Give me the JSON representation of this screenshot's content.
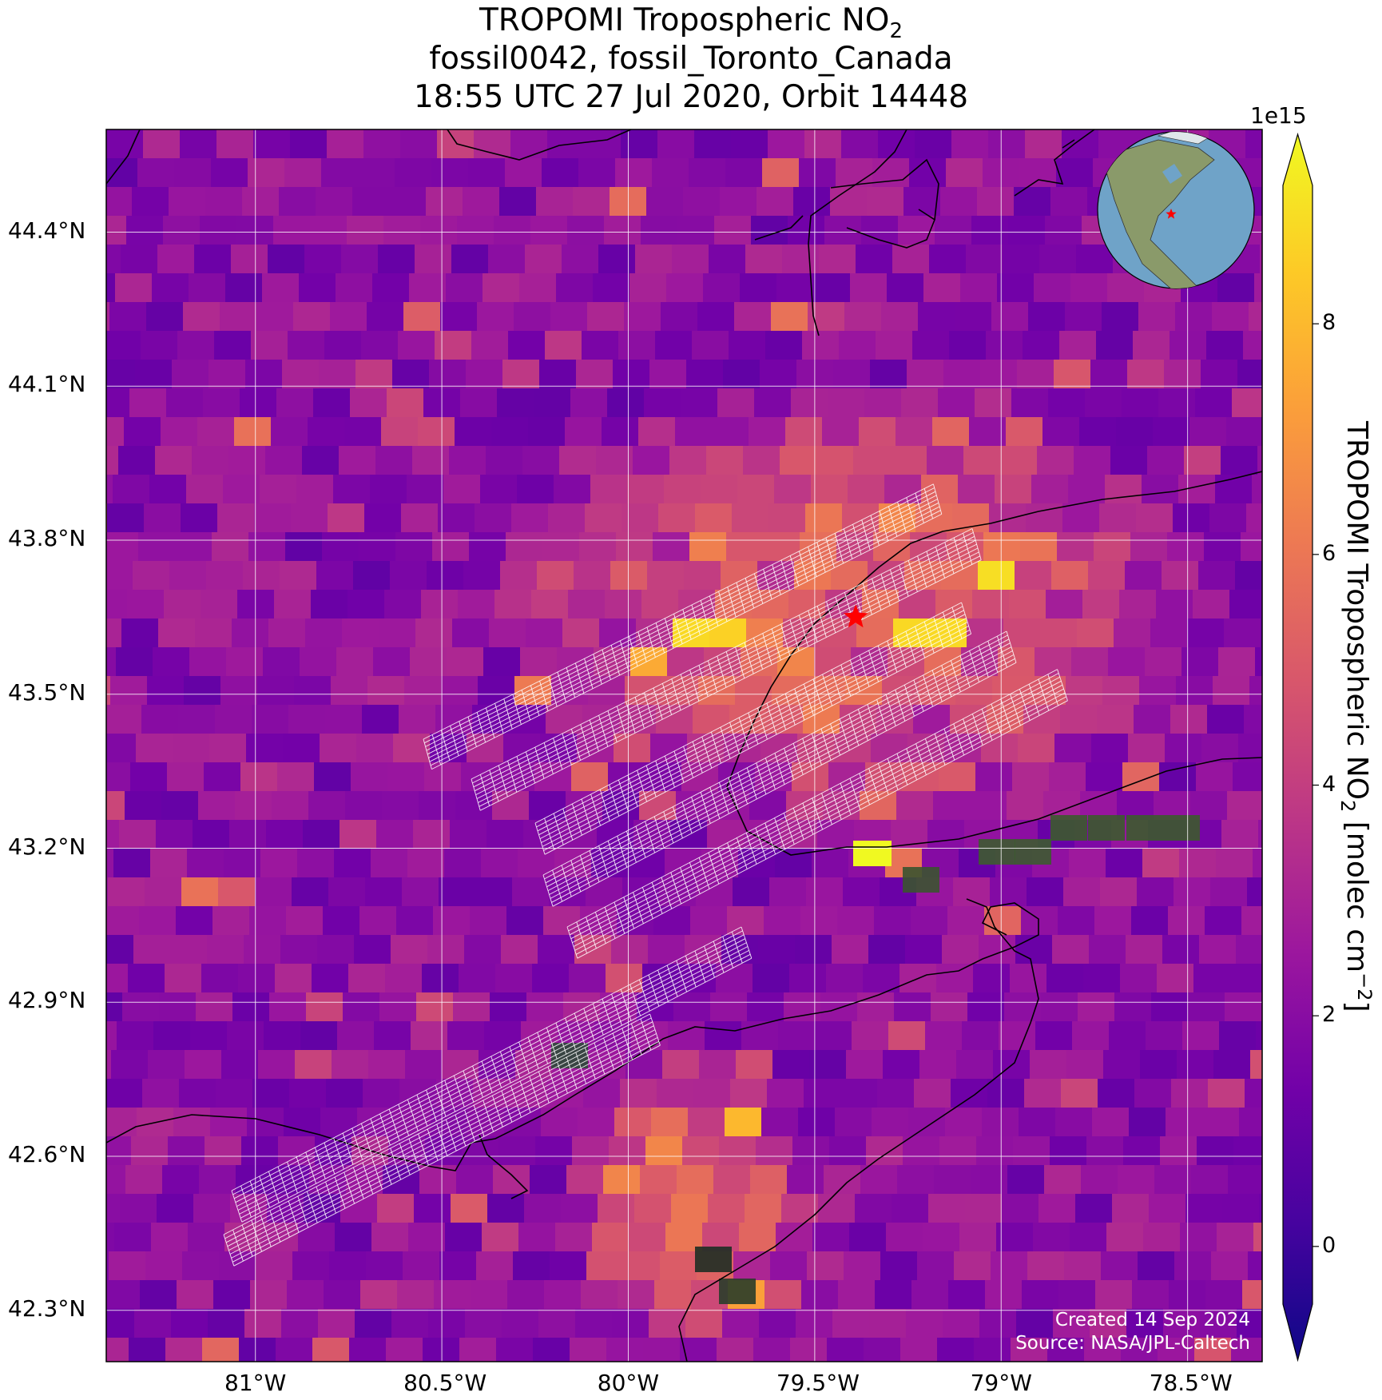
{
  "title": {
    "line1_prefix": "TROPOMI Tropospheric NO",
    "line1_sub": "2",
    "line2": "fossil0042, fossil_Toronto_Canada",
    "line3": "18:55 UTC 27 Jul 2020, Orbit 14448"
  },
  "map": {
    "lon_range": [
      -81.4,
      -78.3
    ],
    "lat_range": [
      42.2,
      44.6
    ],
    "lon_ticks": [
      {
        "value": -81.0,
        "label": "81°W"
      },
      {
        "value": -80.5,
        "label": "80.5°W"
      },
      {
        "value": -80.0,
        "label": "80°W"
      },
      {
        "value": -79.5,
        "label": "79.5°W"
      },
      {
        "value": -79.0,
        "label": "79°W"
      },
      {
        "value": -78.5,
        "label": "78.5°W"
      }
    ],
    "lat_ticks": [
      {
        "value": 44.4,
        "label": "44.4°N"
      },
      {
        "value": 44.1,
        "label": "44.1°N"
      },
      {
        "value": 43.8,
        "label": "43.8°N"
      },
      {
        "value": 43.5,
        "label": "43.5°N"
      },
      {
        "value": 43.2,
        "label": "43.2°N"
      },
      {
        "value": 42.9,
        "label": "42.9°N"
      },
      {
        "value": 42.6,
        "label": "42.6°N"
      },
      {
        "value": 42.3,
        "label": "42.3°N"
      }
    ],
    "target_marker": {
      "lon": -79.39,
      "lat": 43.65,
      "color": "#ff0000"
    },
    "gridline_color": "#ffffff",
    "coastline_color": "#000000",
    "target_grid_color": "#ffffff",
    "inset_globe": {
      "ocean_color": "#6fa3c8",
      "land_color": "#8a9a6a",
      "marker_color": "#ff0000"
    }
  },
  "colorbar": {
    "scale_label": "1e15",
    "label_prefix": "TROPOMI Tropospheric NO",
    "label_sub": "2",
    "label_mid": " [molec cm",
    "label_sup": "−2",
    "label_suffix": "]",
    "min": -0.5,
    "max": 9.2,
    "ticks": [
      {
        "value": 0,
        "label": "0"
      },
      {
        "value": 2,
        "label": "2"
      },
      {
        "value": 4,
        "label": "4"
      },
      {
        "value": 6,
        "label": "6"
      },
      {
        "value": 8,
        "label": "8"
      }
    ],
    "colormap": "plasma",
    "stops": [
      "#0d0887",
      "#46039f",
      "#7201a8",
      "#9c179e",
      "#bd3786",
      "#d8576b",
      "#ed7953",
      "#fb9f3a",
      "#fdca26",
      "#f0f921"
    ]
  },
  "credit": {
    "line1": "Created 14 Sep 2024",
    "line2": "Source: NASA/JPL-Caltech"
  }
}
